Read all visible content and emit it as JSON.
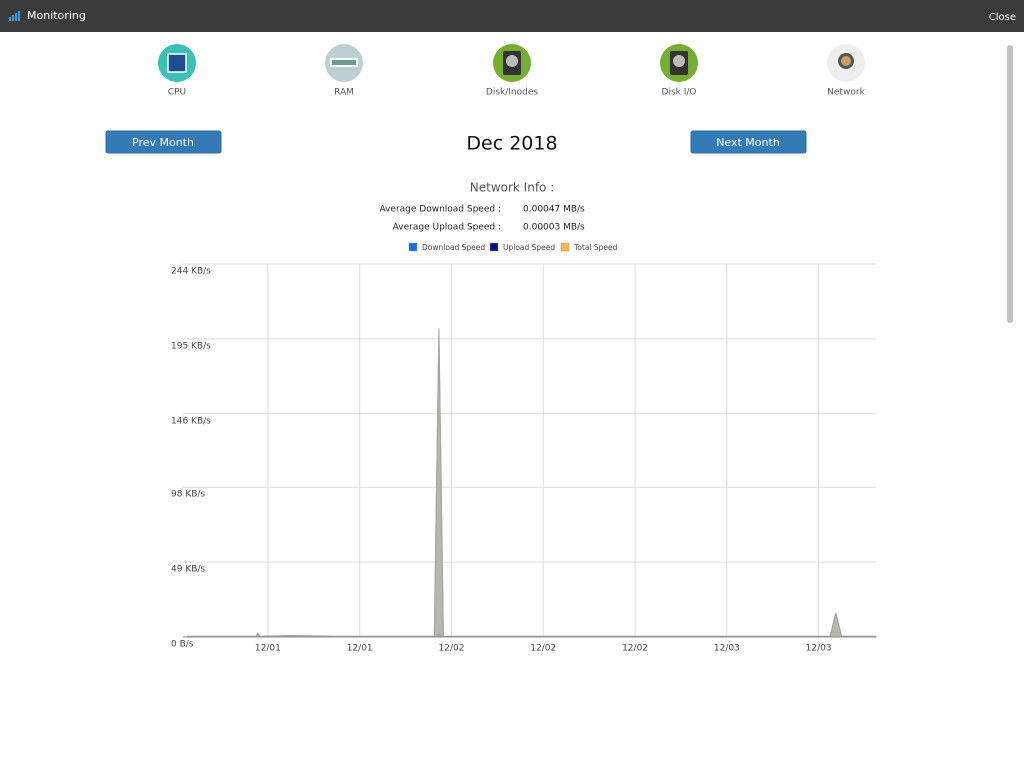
{
  "header": {
    "title": "Monitoring",
    "close": "Close"
  },
  "tabs": [
    "CPU",
    "RAM",
    "Disk/Inodes",
    "Disk I/O",
    "Network"
  ],
  "nav": {
    "prev": "Prev Month",
    "month": "Dec 2018",
    "next": "Next Month"
  },
  "info": {
    "title": "Network Info :",
    "rows": [
      [
        "Average Download Speed :",
        "0.00047 MB/s"
      ],
      [
        "Average Upload Speed :",
        "0.00003 MB/s"
      ]
    ]
  },
  "chart_data": {
    "type": "area",
    "x": [
      5,
      8,
      11,
      11.1,
      11.3,
      14,
      18,
      22,
      26.5,
      26.9,
      27.3,
      30,
      36,
      44,
      52,
      61,
      61.5,
      62,
      65
    ],
    "series": [
      {
        "name": "Download Speed",
        "color": "#1a6fe0",
        "values": [
          0.4,
          0.4,
          0.4,
          2.2,
          0.4,
          0.8,
          0.4,
          0.4,
          0.4,
          200,
          0.4,
          0.4,
          0.4,
          0.4,
          0.4,
          0.4,
          15.5,
          0.4,
          0.4
        ]
      },
      {
        "name": "Upload Speed",
        "color": "#0a0a8c",
        "values": [
          0.1,
          0.1,
          0.1,
          0.3,
          0.1,
          0.2,
          0.1,
          0.1,
          0.1,
          2,
          0.1,
          0.1,
          0.1,
          0.1,
          0.1,
          0.1,
          0.2,
          0.1,
          0.1
        ]
      },
      {
        "name": "Total Speed",
        "color": "#f5b84a",
        "values": [
          0.5,
          0.5,
          0.5,
          2.5,
          0.5,
          1,
          0.5,
          0.5,
          0.5,
          202,
          0.5,
          0.5,
          0.5,
          0.5,
          0.5,
          0.5,
          15.7,
          0.5,
          0.5
        ]
      }
    ],
    "area_color": "#a3a59d",
    "xlim": [
      4.6,
      65
    ],
    "xticks": [
      {
        "value": 12,
        "label": "12/01"
      },
      {
        "value": 20,
        "label": "12/01"
      },
      {
        "value": 28,
        "label": "12/02"
      },
      {
        "value": 36,
        "label": "12/02"
      },
      {
        "value": 44,
        "label": "12/02"
      },
      {
        "value": 52,
        "label": "12/03"
      },
      {
        "value": 60,
        "label": "12/03"
      }
    ],
    "ylim": [
      0,
      244
    ],
    "yticks": [
      {
        "value": 0,
        "label": "0 B/s"
      },
      {
        "value": 49,
        "label": "49 KB/s"
      },
      {
        "value": 98,
        "label": "98 KB/s"
      },
      {
        "value": 146,
        "label": "146 KB/s"
      },
      {
        "value": 195,
        "label": "195 KB/s"
      },
      {
        "value": 244,
        "label": "244 KB/s"
      }
    ],
    "grid": true
  }
}
